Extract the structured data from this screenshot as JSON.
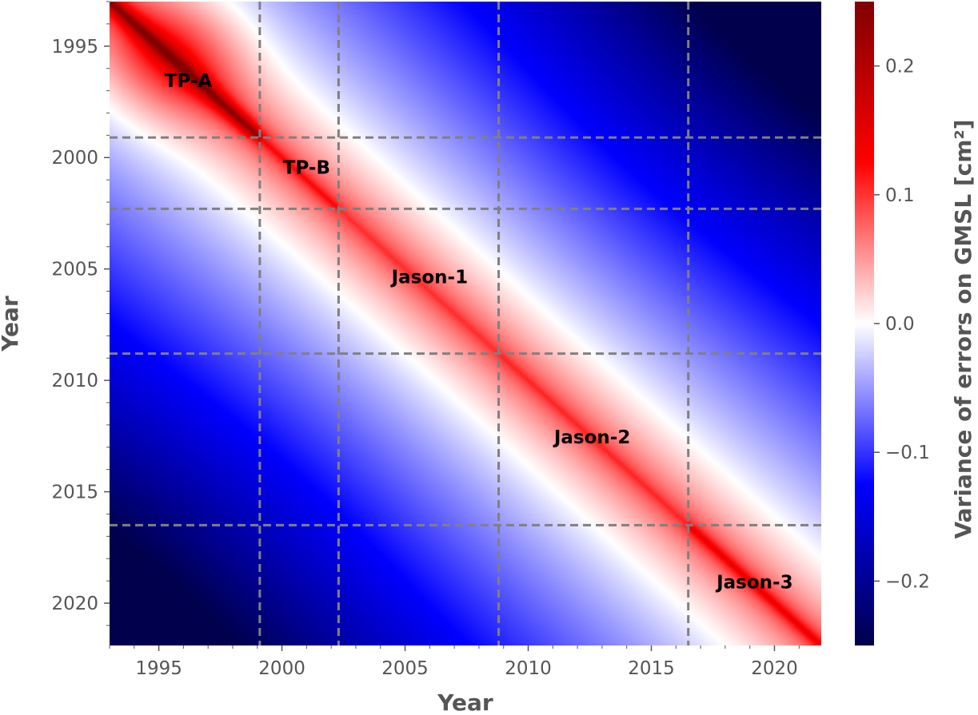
{
  "chart_data": {
    "type": "heatmap",
    "title": "",
    "xlabel": "Year",
    "ylabel": "Year",
    "colorbar_label": "Variance of errors on GMSL [cm²]",
    "xlim": [
      1993.0,
      2021.9
    ],
    "ylim": [
      1993.0,
      2021.9
    ],
    "y_inverted": true,
    "x_ticks": [
      1995,
      2000,
      2005,
      2010,
      2015,
      2020
    ],
    "x_tick_labels": [
      "1995",
      "2000",
      "2005",
      "2010",
      "2015",
      "2020"
    ],
    "y_ticks": [
      1995,
      2000,
      2005,
      2010,
      2015,
      2020
    ],
    "y_tick_labels": [
      "1995",
      "2000",
      "2005",
      "2010",
      "2015",
      "2020"
    ],
    "colorbar_range": [
      -0.25,
      0.25
    ],
    "colorbar_ticks": [
      0.2,
      0.1,
      0.0,
      -0.1,
      -0.2
    ],
    "colorbar_tick_labels": [
      "0.2",
      "0.1",
      "0.0",
      "−0.1",
      "−0.2"
    ],
    "colormap": "seismic",
    "colormap_colors": [
      "#00004c",
      "#0000ff",
      "#ffffff",
      "#ff0000",
      "#800000"
    ],
    "grid_color": "#808080",
    "boundaries": [
      1999.1,
      2002.3,
      2008.8,
      2016.5
    ],
    "missions": [
      {
        "name": "TP-A",
        "start": 1993.0,
        "end": 1999.1,
        "diagonal_variance": 0.24,
        "label_x": 1996.2,
        "label_y": 1996.6
      },
      {
        "name": "TP-B",
        "start": 1999.1,
        "end": 2002.3,
        "diagonal_variance": 0.11,
        "label_x": 2001.0,
        "label_y": 2000.5
      },
      {
        "name": "Jason-1",
        "start": 2002.3,
        "end": 2008.8,
        "diagonal_variance": 0.085,
        "label_x": 2006.0,
        "label_y": 2005.4
      },
      {
        "name": "Jason-2",
        "start": 2008.8,
        "end": 2016.5,
        "diagonal_variance": 0.09,
        "label_x": 2012.6,
        "label_y": 2012.6
      },
      {
        "name": "Jason-3",
        "start": 2016.5,
        "end": 2021.9,
        "diagonal_variance": 0.13,
        "label_x": 2019.2,
        "label_y": 2019.1
      }
    ],
    "grid": false,
    "legend": "none"
  }
}
